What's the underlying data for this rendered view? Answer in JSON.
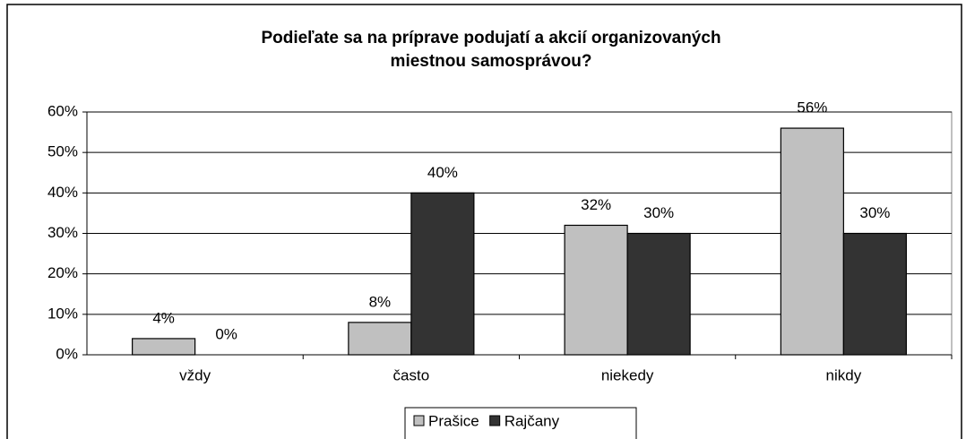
{
  "chart_data": {
    "type": "bar",
    "title": [
      "Podieľate sa na príprave podujatí a akcií organizovaných",
      "miestnou samosprávou?"
    ],
    "categories": [
      "vždy",
      "často",
      "niekedy",
      "nikdy"
    ],
    "series": [
      {
        "name": "Prašice",
        "color": "#c0c0c0",
        "values": [
          4,
          8,
          32,
          56
        ],
        "value_labels": [
          "4%",
          "8%",
          "32%",
          "56%"
        ]
      },
      {
        "name": "Rajčany",
        "color": "#333333",
        "values": [
          0,
          40,
          30,
          30
        ],
        "value_labels": [
          "0%",
          "40%",
          "30%",
          "30%"
        ]
      }
    ],
    "ylim": [
      0,
      60
    ],
    "yticks": [
      {
        "value": 0,
        "label": "0%"
      },
      {
        "value": 10,
        "label": "10%"
      },
      {
        "value": 20,
        "label": "20%"
      },
      {
        "value": 30,
        "label": "30%"
      },
      {
        "value": 40,
        "label": "40%"
      },
      {
        "value": 50,
        "label": "50%"
      },
      {
        "value": 60,
        "label": "60%"
      }
    ],
    "grid": true,
    "legend": "bottom"
  }
}
